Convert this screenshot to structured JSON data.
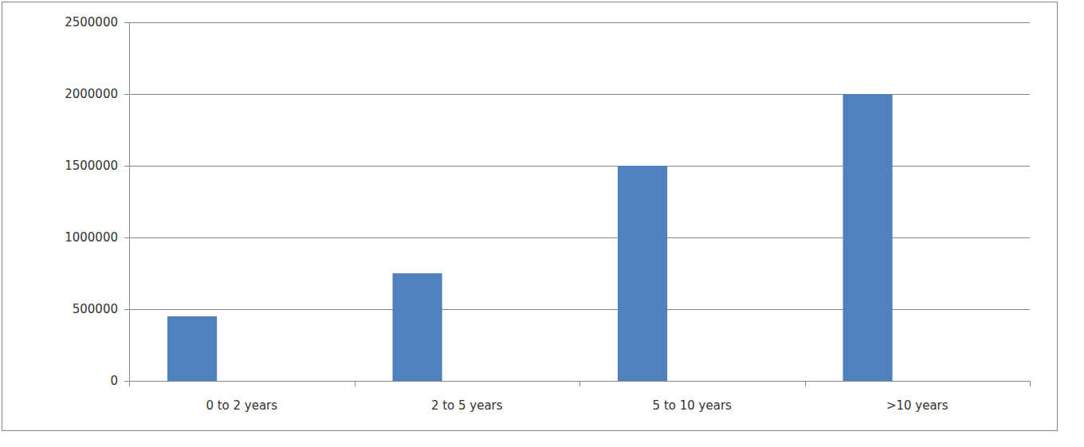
{
  "chart_data": {
    "type": "bar",
    "categories": [
      "0 to 2 years",
      "2 to 5 years",
      "5 to 10 years",
      ">10 years"
    ],
    "values": [
      450000,
      750000,
      1500000,
      2000000
    ],
    "color": "#4f81bd",
    "ylim": [
      0,
      2500000
    ],
    "yticks": [
      0,
      500000,
      1000000,
      1500000,
      2000000,
      2500000
    ],
    "grid": true
  }
}
